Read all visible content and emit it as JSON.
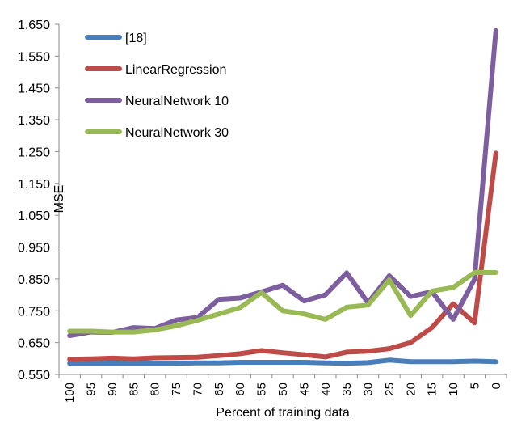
{
  "chart_data": {
    "type": "line",
    "title": "",
    "xlabel": "Percent of training data",
    "ylabel": "MSE",
    "categories": [
      "100",
      "95",
      "90",
      "85",
      "80",
      "75",
      "70",
      "65",
      "60",
      "55",
      "50",
      "45",
      "40",
      "35",
      "30",
      "25",
      "20",
      "15",
      "10",
      "5",
      "0"
    ],
    "y_ticks": [
      "0.550",
      "0.650",
      "0.750",
      "0.850",
      "0.950",
      "1.050",
      "1.150",
      "1.250",
      "1.350",
      "1.450",
      "1.550",
      "1.650"
    ],
    "ylim": [
      0.55,
      1.65
    ],
    "grid": false,
    "legend_position": "top-left",
    "series": [
      {
        "name": "[18]",
        "color": "#4a7ebb",
        "values": [
          0.585,
          0.585,
          0.585,
          0.585,
          0.585,
          0.585,
          0.586,
          0.586,
          0.588,
          0.588,
          0.588,
          0.588,
          0.586,
          0.585,
          0.587,
          0.595,
          0.59,
          0.59,
          0.59,
          0.592,
          0.59
        ]
      },
      {
        "name": "LinearRegression",
        "color": "#be4b48",
        "values": [
          0.598,
          0.599,
          0.601,
          0.599,
          0.602,
          0.603,
          0.604,
          0.609,
          0.615,
          0.625,
          0.618,
          0.612,
          0.605,
          0.62,
          0.623,
          0.631,
          0.65,
          0.697,
          0.772,
          0.712,
          1.245
        ]
      },
      {
        "name": "NeuralNetwork 10",
        "color": "#7d5fa0",
        "values": [
          0.672,
          0.683,
          0.682,
          0.697,
          0.694,
          0.721,
          0.729,
          0.786,
          0.79,
          0.809,
          0.83,
          0.781,
          0.8,
          0.869,
          0.775,
          0.86,
          0.795,
          0.81,
          0.723,
          0.849,
          1.63
        ]
      },
      {
        "name": "NeuralNetwork 30",
        "color": "#98b954",
        "values": [
          0.686,
          0.686,
          0.683,
          0.683,
          0.69,
          0.703,
          0.72,
          0.74,
          0.76,
          0.807,
          0.75,
          0.74,
          0.723,
          0.761,
          0.768,
          0.847,
          0.735,
          0.812,
          0.823,
          0.87,
          0.87
        ]
      }
    ]
  }
}
